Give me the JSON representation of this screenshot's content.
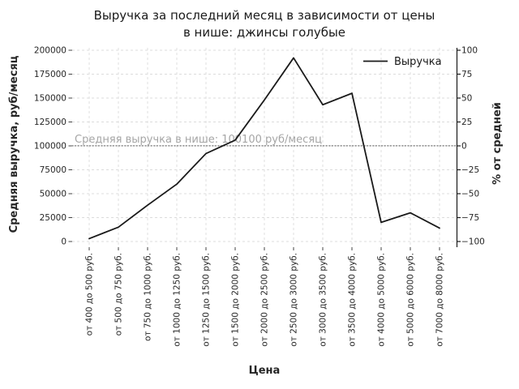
{
  "chart_data": {
    "type": "line",
    "title": "Выручка за последний месяц в зависимости от цены в нише: джинсы голубые",
    "title_lines": [
      "Выручка за последний месяц в зависимости от цены",
      "в нише: джинсы голубые"
    ],
    "categories": [
      "от 400 до 500 руб.",
      "от 500 до 750 руб.",
      "от 750 до 1000 руб.",
      "от 1000 до 1250 руб.",
      "от 1250 до 1500 руб.",
      "от 1500 до 2000 руб.",
      "от 2000 до 2500 руб.",
      "от 2500 до 3000 руб.",
      "от 3000 до 3500 руб.",
      "от 3500 до 4000 руб.",
      "от 4000 до 5000 руб.",
      "от 5000 до 6000 руб.",
      "от 7000 до 8000 руб."
    ],
    "series": [
      {
        "name": "Выручка",
        "color": "#1a1a1a",
        "values": [
          3000,
          15000,
          38000,
          60000,
          92000,
          106000,
          148000,
          192000,
          143000,
          155000,
          20000,
          30000,
          14000
        ]
      }
    ],
    "xlabel": "Цена",
    "ylabel_left": "Средняя выручка, руб/месяц",
    "ylabel_right": "% от средней",
    "yticks_left": [
      0,
      25000,
      50000,
      75000,
      100000,
      125000,
      150000,
      175000,
      200000
    ],
    "yticks_right": [
      -100,
      -75,
      -50,
      -25,
      0,
      25,
      50,
      75,
      100
    ],
    "ylim_left": [
      0,
      200000
    ],
    "ylim_right": [
      -100,
      100
    ],
    "x_tick_rotation": 90,
    "average_line": {
      "value": 100100,
      "label": "Средняя выручка в нише: 100100 руб/месяц",
      "color": "#8c8c8c",
      "label_color": "#a6a6a6",
      "style": "dotted"
    },
    "legend": {
      "position": "upper right",
      "frame": false,
      "entries": [
        {
          "label": "Выручка",
          "color": "#1a1a1a"
        }
      ]
    },
    "grid": {
      "show": true,
      "style": "dashed",
      "color": "#dcdcdc"
    },
    "text_color": "#262626"
  }
}
